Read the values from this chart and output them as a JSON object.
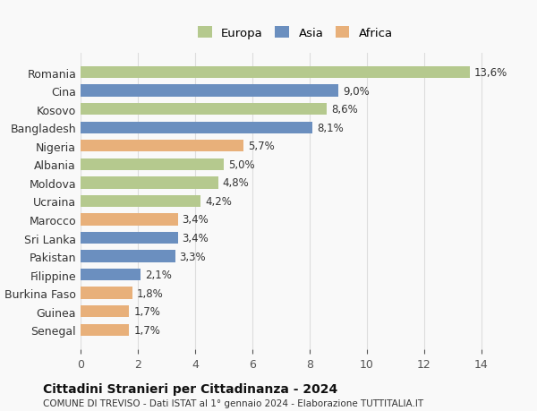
{
  "categories": [
    "Romania",
    "Cina",
    "Kosovo",
    "Bangladesh",
    "Nigeria",
    "Albania",
    "Moldova",
    "Ucraina",
    "Marocco",
    "Sri Lanka",
    "Pakistan",
    "Filippine",
    "Burkina Faso",
    "Guinea",
    "Senegal"
  ],
  "values": [
    13.6,
    9.0,
    8.6,
    8.1,
    5.7,
    5.0,
    4.8,
    4.2,
    3.4,
    3.4,
    3.3,
    2.1,
    1.8,
    1.7,
    1.7
  ],
  "continents": [
    "Europa",
    "Asia",
    "Europa",
    "Asia",
    "Africa",
    "Europa",
    "Europa",
    "Europa",
    "Africa",
    "Asia",
    "Asia",
    "Asia",
    "Africa",
    "Africa",
    "Africa"
  ],
  "colors": {
    "Europa": "#b5c98e",
    "Asia": "#6b8fbf",
    "Africa": "#e8b07a"
  },
  "labels": [
    "13,6%",
    "9,0%",
    "8,6%",
    "8,1%",
    "5,7%",
    "5,0%",
    "4,8%",
    "4,2%",
    "3,4%",
    "3,4%",
    "3,3%",
    "2,1%",
    "1,8%",
    "1,7%",
    "1,7%"
  ],
  "xlim": [
    0,
    15
  ],
  "xticks": [
    0,
    2,
    4,
    6,
    8,
    10,
    12,
    14
  ],
  "title": "Cittadini Stranieri per Cittadinanza - 2024",
  "subtitle": "COMUNE DI TREVISO - Dati ISTAT al 1° gennaio 2024 - Elaborazione TUTTITALIA.IT",
  "legend_labels": [
    "Europa",
    "Asia",
    "Africa"
  ],
  "background_color": "#f9f9f9",
  "grid_color": "#dddddd"
}
